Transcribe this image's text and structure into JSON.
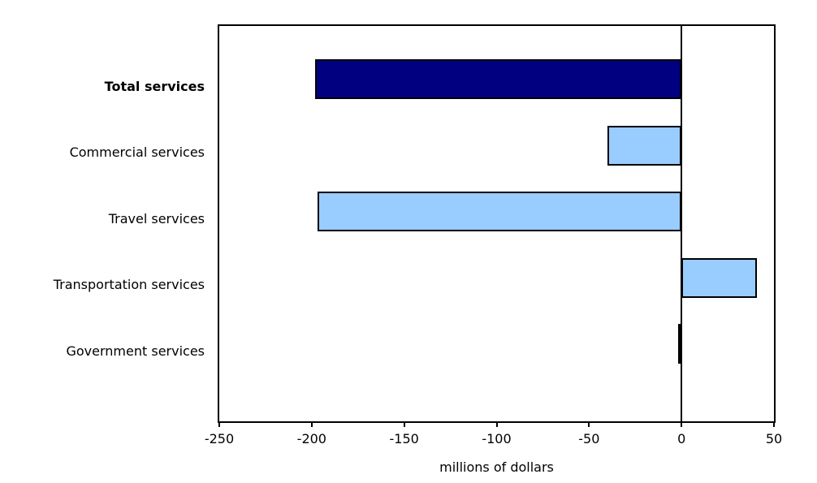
{
  "chart_data": {
    "type": "bar",
    "orientation": "horizontal",
    "xlabel": "millions of dollars",
    "xlim": [
      -250,
      50
    ],
    "x_ticks": [
      -250,
      -200,
      -150,
      -100,
      -50,
      0,
      50
    ],
    "x_tick_labels": [
      "-250",
      "-200",
      "-150",
      "-100",
      "-50",
      "0",
      "50"
    ],
    "grid": false,
    "legend": null,
    "zero_line": true,
    "categories": [
      "Total services",
      "Commercial services",
      "Travel services",
      "Transportation services",
      "Government services"
    ],
    "values": [
      -198,
      -40,
      -197,
      41,
      -2
    ],
    "bars": [
      {
        "label": "Total services",
        "value": -198,
        "color": "#000080",
        "bold_label": true
      },
      {
        "label": "Commercial services",
        "value": -40,
        "color": "#99ccff",
        "bold_label": false
      },
      {
        "label": "Travel services",
        "value": -197,
        "color": "#99ccff",
        "bold_label": false
      },
      {
        "label": "Transportation services",
        "value": 41,
        "color": "#99ccff",
        "bold_label": false
      },
      {
        "label": "Government services",
        "value": -2,
        "color": "#99ccff",
        "bold_label": false
      }
    ],
    "colors": {
      "emphasis_bar": "#000080",
      "default_bar": "#99ccff",
      "bar_border": "#000000",
      "axis": "#000000",
      "background": "#ffffff"
    }
  }
}
